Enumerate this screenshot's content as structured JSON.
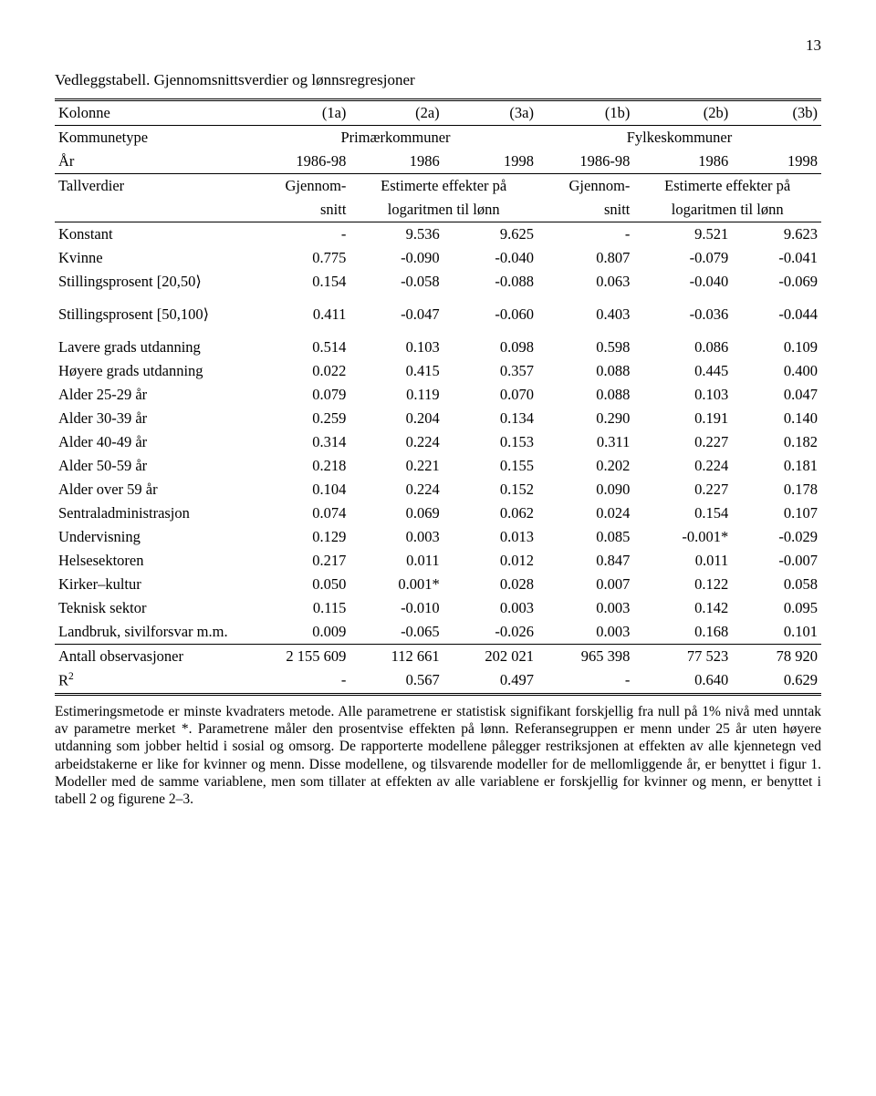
{
  "page_number": "13",
  "title": "Vedleggstabell. Gjennomsnittsverdier og lønnsregresjoner",
  "header": {
    "kolonne": "Kolonne",
    "cols": [
      "(1a)",
      "(2a)",
      "(3a)",
      "(1b)",
      "(2b)",
      "(3b)"
    ],
    "kommunetype": "Kommunetype",
    "primaer": "Primærkommuner",
    "fylkes": "Fylkeskommuner",
    "aar": "År",
    "aar_vals": [
      "1986-98",
      "1986",
      "1998",
      "1986-98",
      "1986",
      "1998"
    ],
    "tallverdier": "Tallverdier",
    "gjennom": "Gjennom-",
    "estimerte": "Estimerte effekter på",
    "snitt": "snitt",
    "log": "logaritmen til lønn"
  },
  "rows": [
    {
      "label": "Konstant",
      "v": [
        "-",
        "9.536",
        "9.625",
        "-",
        "9.521",
        "9.623"
      ]
    },
    {
      "label": "Kvinne",
      "v": [
        "0.775",
        "-0.090",
        "-0.040",
        "0.807",
        "-0.079",
        "-0.041"
      ]
    },
    {
      "label": "Stillingsprosent ⎡20,50⟩",
      "v": [
        "0.154",
        "-0.058",
        "-0.088",
        "0.063",
        "-0.040",
        "-0.069"
      ]
    },
    {
      "label": "Stillingsprosent ⎡50,100⟩",
      "v": [
        "0.411",
        "-0.047",
        "-0.060",
        "0.403",
        "-0.036",
        "-0.044"
      ]
    },
    {
      "label": "Lavere grads utdanning",
      "v": [
        "0.514",
        "0.103",
        "0.098",
        "0.598",
        "0.086",
        "0.109"
      ]
    },
    {
      "label": "Høyere grads utdanning",
      "v": [
        "0.022",
        "0.415",
        "0.357",
        "0.088",
        "0.445",
        "0.400"
      ]
    },
    {
      "label": "Alder 25-29 år",
      "v": [
        "0.079",
        "0.119",
        "0.070",
        "0.088",
        "0.103",
        "0.047"
      ]
    },
    {
      "label": "Alder 30-39 år",
      "v": [
        "0.259",
        "0.204",
        "0.134",
        "0.290",
        "0.191",
        "0.140"
      ]
    },
    {
      "label": "Alder 40-49 år",
      "v": [
        "0.314",
        "0.224",
        "0.153",
        "0.311",
        "0.227",
        "0.182"
      ]
    },
    {
      "label": "Alder 50-59 år",
      "v": [
        "0.218",
        "0.221",
        "0.155",
        "0.202",
        "0.224",
        "0.181"
      ]
    },
    {
      "label": "Alder over 59 år",
      "v": [
        "0.104",
        "0.224",
        "0.152",
        "0.090",
        "0.227",
        "0.178"
      ]
    },
    {
      "label": "Sentraladministrasjon",
      "v": [
        "0.074",
        "0.069",
        "0.062",
        "0.024",
        "0.154",
        "0.107"
      ]
    },
    {
      "label": "Undervisning",
      "v": [
        "0.129",
        "0.003",
        "0.013",
        "0.085",
        "-0.001*",
        "-0.029"
      ]
    },
    {
      "label": "Helsesektoren",
      "v": [
        "0.217",
        "0.011",
        "0.012",
        "0.847",
        "0.011",
        "-0.007"
      ]
    },
    {
      "label": "Kirker–kultur",
      "v": [
        "0.050",
        "0.001*",
        "0.028",
        "0.007",
        "0.122",
        "0.058"
      ]
    },
    {
      "label": "Teknisk sektor",
      "v": [
        "0.115",
        "-0.010",
        "0.003",
        "0.003",
        "0.142",
        "0.095"
      ]
    },
    {
      "label": "Landbruk, sivilforsvar m.m.",
      "v": [
        "0.009",
        "-0.065",
        "-0.026",
        "0.003",
        "0.168",
        "0.101"
      ]
    }
  ],
  "footer_rows": [
    {
      "label": "Antall observasjoner",
      "v": [
        "2 155 609",
        "112 661",
        "202 021",
        "965 398",
        "77 523",
        "78 920"
      ]
    },
    {
      "label": "R²",
      "v": [
        "-",
        "0.567",
        "0.497",
        "-",
        "0.640",
        "0.629"
      ]
    }
  ],
  "footnote": "Estimeringsmetode er minste kvadraters metode. Alle parametrene er statistisk signifikant forskjellig fra null på 1% nivå med unntak av parametre merket *. Parametrene måler den prosentvise effekten på lønn. Referansegruppen er menn under 25 år uten høyere utdanning som jobber heltid i sosial og omsorg. De rapporterte modellene pålegger restriksjonen at effekten av alle kjennetegn ved arbeidstakerne er like for kvinner og menn. Disse modellene, og tilsvarende modeller for de mellomliggende år, er benyttet i figur 1. Modeller med de samme variablene, men som tillater at effekten av alle variablene er forskjellig for kvinner og menn, er benyttet i tabell 2 og figurene 2–3."
}
